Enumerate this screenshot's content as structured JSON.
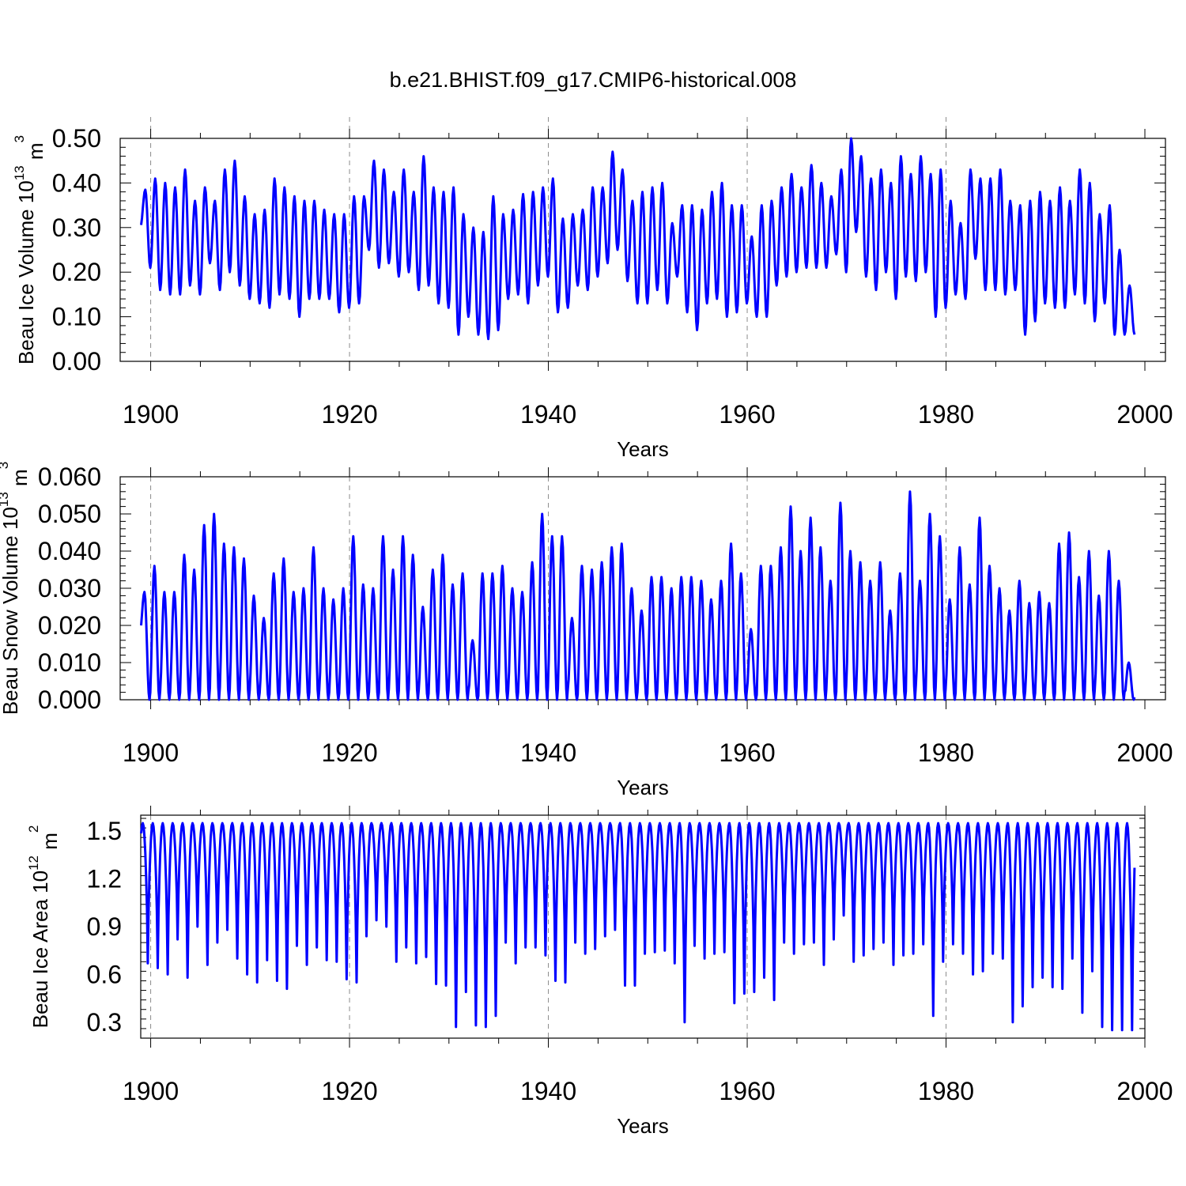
{
  "title": "b.e21.BHIST.f09_g17.CMIP6-historical.008",
  "colors": {
    "series": "#0000ff",
    "axis": "#000000",
    "grid": "#8c8c8c"
  },
  "chart_data": [
    {
      "type": "line",
      "title": "b.e21.BHIST.f09_g17.CMIP6-historical.008",
      "xlabel": "Years",
      "ylabel_main": "Beau Ice Volume 10",
      "ylabel_exp": "13",
      "ylabel_unit": " m",
      "ylabel_unit_exp": "3",
      "xlim": [
        1899,
        2000
      ],
      "ylim": [
        0.0,
        0.5
      ],
      "xticks": [
        "1900",
        "1920",
        "1940",
        "1960",
        "1980",
        "2000"
      ],
      "yticks": [
        "0.00",
        "0.10",
        "0.20",
        "0.30",
        "0.40",
        "0.50"
      ],
      "grid": "dashed vertical at 20-year ticks",
      "series": [
        {
          "name": "Beau Ice Volume",
          "start_year": 1899,
          "peak_month": 5,
          "annual_max": [
            0.385,
            0.41,
            0.4,
            0.39,
            0.43,
            0.36,
            0.39,
            0.36,
            0.43,
            0.45,
            0.37,
            0.33,
            0.34,
            0.41,
            0.39,
            0.37,
            0.36,
            0.36,
            0.34,
            0.33,
            0.33,
            0.37,
            0.37,
            0.45,
            0.43,
            0.38,
            0.43,
            0.38,
            0.46,
            0.39,
            0.38,
            0.39,
            0.33,
            0.3,
            0.29,
            0.37,
            0.33,
            0.34,
            0.375,
            0.38,
            0.39,
            0.41,
            0.32,
            0.33,
            0.34,
            0.39,
            0.39,
            0.47,
            0.43,
            0.36,
            0.38,
            0.39,
            0.4,
            0.31,
            0.35,
            0.35,
            0.34,
            0.38,
            0.4,
            0.35,
            0.35,
            0.28,
            0.35,
            0.36,
            0.39,
            0.42,
            0.39,
            0.44,
            0.4,
            0.37,
            0.43,
            0.5,
            0.46,
            0.41,
            0.43,
            0.4,
            0.46,
            0.42,
            0.46,
            0.42,
            0.43,
            0.36,
            0.31,
            0.43,
            0.41,
            0.41,
            0.43,
            0.36,
            0.35,
            0.36,
            0.38,
            0.36,
            0.39,
            0.36,
            0.43,
            0.4,
            0.33,
            0.35,
            0.25,
            0.17
          ],
          "annual_min": [
            0.3,
            0.21,
            0.16,
            0.15,
            0.15,
            0.17,
            0.15,
            0.22,
            0.16,
            0.2,
            0.17,
            0.14,
            0.13,
            0.12,
            0.15,
            0.14,
            0.1,
            0.14,
            0.14,
            0.14,
            0.11,
            0.12,
            0.13,
            0.25,
            0.21,
            0.22,
            0.19,
            0.2,
            0.16,
            0.17,
            0.13,
            0.12,
            0.06,
            0.1,
            0.06,
            0.05,
            0.07,
            0.14,
            0.15,
            0.13,
            0.17,
            0.19,
            0.11,
            0.12,
            0.17,
            0.16,
            0.19,
            0.22,
            0.25,
            0.18,
            0.13,
            0.13,
            0.16,
            0.13,
            0.19,
            0.11,
            0.07,
            0.13,
            0.14,
            0.1,
            0.11,
            0.13,
            0.1,
            0.1,
            0.17,
            0.19,
            0.2,
            0.21,
            0.21,
            0.21,
            0.24,
            0.2,
            0.29,
            0.19,
            0.16,
            0.2,
            0.14,
            0.19,
            0.18,
            0.2,
            0.1,
            0.12,
            0.15,
            0.14,
            0.23,
            0.16,
            0.16,
            0.15,
            0.16,
            0.06,
            0.09,
            0.13,
            0.12,
            0.12,
            0.15,
            0.13,
            0.09,
            0.13,
            0.06,
            0.06
          ]
        }
      ]
    },
    {
      "type": "line",
      "xlabel": "Years",
      "ylabel_main": "Beau Snow Volume 10",
      "ylabel_exp": "13",
      "ylabel_unit": " m",
      "ylabel_unit_exp": "3",
      "xlim": [
        1899,
        2000
      ],
      "ylim": [
        0.0,
        0.06
      ],
      "xticks": [
        "1900",
        "1920",
        "1940",
        "1960",
        "1980",
        "2000"
      ],
      "yticks": [
        "0.000",
        "0.010",
        "0.020",
        "0.030",
        "0.040",
        "0.050",
        "0.060"
      ],
      "grid": "dashed vertical at 20-year ticks",
      "series": [
        {
          "name": "Beau Snow Volume",
          "start_year": 1899,
          "peak_month": 4,
          "annual_max": [
            0.029,
            0.036,
            0.029,
            0.029,
            0.039,
            0.035,
            0.047,
            0.05,
            0.042,
            0.041,
            0.038,
            0.028,
            0.022,
            0.034,
            0.038,
            0.029,
            0.03,
            0.041,
            0.03,
            0.027,
            0.03,
            0.044,
            0.031,
            0.03,
            0.044,
            0.035,
            0.044,
            0.039,
            0.025,
            0.035,
            0.039,
            0.031,
            0.034,
            0.016,
            0.034,
            0.034,
            0.036,
            0.03,
            0.029,
            0.037,
            0.05,
            0.044,
            0.044,
            0.022,
            0.036,
            0.035,
            0.037,
            0.041,
            0.042,
            0.03,
            0.024,
            0.033,
            0.033,
            0.03,
            0.033,
            0.033,
            0.032,
            0.027,
            0.032,
            0.042,
            0.034,
            0.019,
            0.036,
            0.036,
            0.041,
            0.052,
            0.04,
            0.049,
            0.041,
            0.032,
            0.053,
            0.04,
            0.037,
            0.032,
            0.037,
            0.024,
            0.034,
            0.056,
            0.032,
            0.05,
            0.044,
            0.027,
            0.041,
            0.031,
            0.049,
            0.036,
            0.03,
            0.024,
            0.032,
            0.026,
            0.029,
            0.026,
            0.042,
            0.045,
            0.033,
            0.04,
            0.028,
            0.04,
            0.032,
            0.01
          ],
          "annual_min": [
            0.017,
            0,
            0,
            0,
            0,
            0,
            0,
            0,
            0,
            0,
            0,
            0,
            0,
            0,
            0,
            0,
            0,
            0,
            0,
            0,
            0,
            0,
            0,
            0,
            0,
            0,
            0,
            0,
            0,
            0,
            0,
            0,
            0,
            0,
            0,
            0,
            0,
            0,
            0,
            0,
            0,
            0,
            0,
            0,
            0,
            0,
            0,
            0,
            0,
            0,
            0,
            0,
            0,
            0,
            0,
            0,
            0,
            0,
            0,
            0,
            0,
            0,
            0,
            0,
            0,
            0,
            0,
            0,
            0,
            0,
            0,
            0,
            0,
            0,
            0,
            0,
            0,
            0,
            0,
            0,
            0,
            0,
            0,
            0,
            0,
            0,
            0,
            0,
            0,
            0,
            0,
            0,
            0,
            0,
            0,
            0,
            0,
            0,
            0,
            0
          ]
        }
      ]
    },
    {
      "type": "line",
      "xlabel": "Years",
      "ylabel_main": "Beau Ice Area 10",
      "ylabel_exp": "12",
      "ylabel_unit": " m",
      "ylabel_unit_exp": "2",
      "xlim": [
        1899,
        2000
      ],
      "ylim": [
        0.2,
        1.6
      ],
      "xticks": [
        "1900",
        "1920",
        "1940",
        "1960",
        "1980",
        "2000"
      ],
      "yticks": [
        "0.3",
        "0.6",
        "0.9",
        "1.2",
        "1.5"
      ],
      "grid": "dashed vertical at 20-year ticks",
      "series": [
        {
          "name": "Beau Ice Area",
          "start_year": 1899,
          "peak_month": 2,
          "annual_max": [
            1.55,
            1.55,
            1.55,
            1.55,
            1.55,
            1.55,
            1.55,
            1.55,
            1.55,
            1.55,
            1.55,
            1.55,
            1.55,
            1.55,
            1.55,
            1.55,
            1.55,
            1.55,
            1.55,
            1.55,
            1.55,
            1.55,
            1.55,
            1.55,
            1.55,
            1.55,
            1.55,
            1.55,
            1.55,
            1.55,
            1.55,
            1.55,
            1.55,
            1.55,
            1.55,
            1.55,
            1.55,
            1.55,
            1.55,
            1.55,
            1.55,
            1.55,
            1.55,
            1.55,
            1.55,
            1.55,
            1.55,
            1.55,
            1.55,
            1.55,
            1.55,
            1.55,
            1.55,
            1.55,
            1.55,
            1.55,
            1.55,
            1.55,
            1.55,
            1.55,
            1.55,
            1.55,
            1.55,
            1.55,
            1.55,
            1.55,
            1.55,
            1.55,
            1.55,
            1.55,
            1.55,
            1.55,
            1.55,
            1.55,
            1.55,
            1.55,
            1.55,
            1.55,
            1.55,
            1.55,
            1.55,
            1.55,
            1.55,
            1.55,
            1.55,
            1.55,
            1.55,
            1.55,
            1.55,
            1.55,
            1.55,
            1.55,
            1.55,
            1.55,
            1.55,
            1.55,
            1.55,
            1.55,
            1.55,
            1.55
          ],
          "annual_min": [
            0.88,
            0.67,
            0.64,
            0.6,
            0.82,
            0.58,
            0.9,
            0.66,
            0.8,
            0.88,
            0.7,
            0.6,
            0.55,
            0.69,
            0.56,
            0.51,
            0.78,
            0.66,
            0.77,
            0.69,
            0.68,
            0.57,
            0.55,
            0.84,
            0.94,
            0.9,
            0.68,
            0.77,
            0.67,
            0.71,
            0.54,
            0.53,
            0.27,
            0.49,
            0.28,
            0.27,
            0.34,
            0.8,
            0.67,
            0.77,
            0.77,
            0.72,
            0.56,
            0.55,
            0.8,
            0.73,
            0.76,
            0.84,
            0.88,
            0.53,
            0.53,
            0.73,
            0.74,
            0.75,
            0.67,
            0.3,
            0.78,
            0.7,
            0.73,
            0.74,
            0.42,
            0.48,
            0.49,
            0.58,
            0.44,
            0.8,
            0.73,
            0.79,
            0.8,
            0.66,
            0.82,
            0.97,
            0.68,
            0.72,
            0.76,
            0.8,
            0.66,
            0.72,
            0.73,
            0.79,
            0.34,
            0.68,
            0.79,
            0.73,
            0.6,
            0.62,
            0.73,
            0.7,
            0.3,
            0.4,
            0.52,
            0.58,
            0.52,
            0.51,
            0.7,
            0.36,
            0.62,
            0.27,
            0.25,
            0.25
          ]
        }
      ]
    }
  ]
}
